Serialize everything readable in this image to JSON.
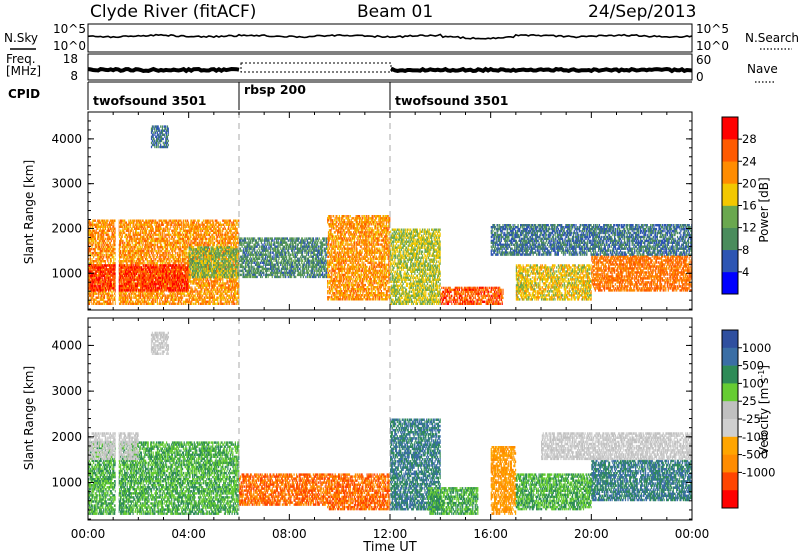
{
  "header": {
    "station": "Clyde River (fitACF)",
    "beam": "Beam 01",
    "date": "24/Sep/2013"
  },
  "noise_panel": {
    "left_label": "N.Sky",
    "left_ticks": [
      "10^5",
      "10^0"
    ],
    "right_label": "N.Search",
    "right_ticks": [
      "10^5",
      "10^0"
    ]
  },
  "freq_panel": {
    "left_label_1": "Freq.",
    "left_label_2": "[MHz]",
    "left_ticks": [
      "18",
      "8"
    ],
    "right_label": "Nave",
    "right_ticks": [
      "60",
      "0"
    ]
  },
  "cpid": {
    "label": "CPID",
    "segments": [
      {
        "name": "twofsound 3501",
        "start": 0,
        "end": 6
      },
      {
        "name": "rbsp 200",
        "start": 6,
        "end": 12
      },
      {
        "name": "twofsound 3501",
        "start": 12,
        "end": 24
      }
    ]
  },
  "colors": {
    "power": [
      "#0000ff",
      "#2d55b3",
      "#4a8c5c",
      "#6aa84f",
      "#f3c800",
      "#ff8c00",
      "#ff5a00",
      "#ff0000"
    ],
    "velocity": [
      "#ff0000",
      "#ff4500",
      "#ff8c00",
      "#ffa500",
      "#d0d0d0",
      "#c0c0c0",
      "#66cc33",
      "#2e8b57",
      "#3a6ea5",
      "#2f4f9f"
    ],
    "ground_scatter": "#b8b8b8"
  },
  "chart_data": [
    {
      "type": "heatmap",
      "title": "",
      "xlabel": "Time UT",
      "ylabel": "Slant Range [km]",
      "xlim": [
        0,
        24
      ],
      "ylim": [
        180,
        4600
      ],
      "xticks": [
        "00:00",
        "04:00",
        "08:00",
        "12:00",
        "16:00",
        "20:00",
        "00:00"
      ],
      "yticks": [
        1000,
        2000,
        3000,
        4000
      ],
      "colorbar": {
        "label": "Power [dB]",
        "ticks": [
          "28",
          "24",
          "20",
          "16",
          "12",
          "8",
          "4"
        ],
        "range": [
          0,
          32
        ]
      },
      "regions": [
        {
          "t0": 0.0,
          "t1": 6.0,
          "r0": 300,
          "r1": 2200,
          "level": 22
        },
        {
          "t0": 0.0,
          "t1": 4.0,
          "r0": 600,
          "r1": 1200,
          "level": 28
        },
        {
          "t0": 4.0,
          "t1": 6.0,
          "r0": 900,
          "r1": 1600,
          "level": 14
        },
        {
          "t0": 6.0,
          "t1": 9.5,
          "r0": 900,
          "r1": 1800,
          "level": 10
        },
        {
          "t0": 9.5,
          "t1": 12.0,
          "r0": 400,
          "r1": 2300,
          "level": 22
        },
        {
          "t0": 12.0,
          "t1": 14.0,
          "r0": 300,
          "r1": 2000,
          "level": 16
        },
        {
          "t0": 14.0,
          "t1": 16.5,
          "r0": 300,
          "r1": 700,
          "level": 26
        },
        {
          "t0": 17.0,
          "t1": 20.0,
          "r0": 400,
          "r1": 1200,
          "level": 18
        },
        {
          "t0": 20.0,
          "t1": 24.0,
          "r0": 600,
          "r1": 1400,
          "level": 24
        },
        {
          "t0": 2.5,
          "t1": 3.2,
          "r0": 3800,
          "r1": 4300,
          "level": 8
        },
        {
          "t0": 16.0,
          "t1": 24.0,
          "r0": 1400,
          "r1": 2100,
          "level": 8
        }
      ]
    },
    {
      "type": "heatmap",
      "title": "",
      "xlabel": "Time UT",
      "ylabel": "Slant Range [km]",
      "xlim": [
        0,
        24
      ],
      "ylim": [
        180,
        4600
      ],
      "xticks": [
        "00:00",
        "04:00",
        "08:00",
        "12:00",
        "16:00",
        "20:00",
        "00:00"
      ],
      "yticks": [
        1000,
        2000,
        3000,
        4000
      ],
      "colorbar": {
        "label": "Velocity [m s^-1]",
        "ticks": [
          "1000",
          "500",
          "100",
          "25",
          "-25",
          "-100",
          "-500",
          "-1000"
        ]
      },
      "regions": [
        {
          "t0": 0.0,
          "t1": 6.0,
          "r0": 300,
          "r1": 1900,
          "level": 100
        },
        {
          "t0": 0.0,
          "t1": 2.0,
          "r0": 1500,
          "r1": 2100,
          "level": 0
        },
        {
          "t0": 6.0,
          "t1": 9.5,
          "r0": 500,
          "r1": 1200,
          "level": -500
        },
        {
          "t0": 9.5,
          "t1": 12.0,
          "r0": 400,
          "r1": 1200,
          "level": -500
        },
        {
          "t0": 12.0,
          "t1": 14.0,
          "r0": 400,
          "r1": 2400,
          "level": 500
        },
        {
          "t0": 13.5,
          "t1": 15.5,
          "r0": 300,
          "r1": 900,
          "level": 100
        },
        {
          "t0": 16.0,
          "t1": 17.0,
          "r0": 300,
          "r1": 1800,
          "level": -100
        },
        {
          "t0": 17.0,
          "t1": 20.0,
          "r0": 400,
          "r1": 1200,
          "level": 100
        },
        {
          "t0": 20.0,
          "t1": 24.0,
          "r0": 600,
          "r1": 1500,
          "level": 500
        },
        {
          "t0": 18.0,
          "t1": 24.0,
          "r0": 1500,
          "r1": 2100,
          "level": 0
        },
        {
          "t0": 2.5,
          "t1": 3.2,
          "r0": 3800,
          "r1": 4300,
          "level": 0
        }
      ]
    }
  ]
}
